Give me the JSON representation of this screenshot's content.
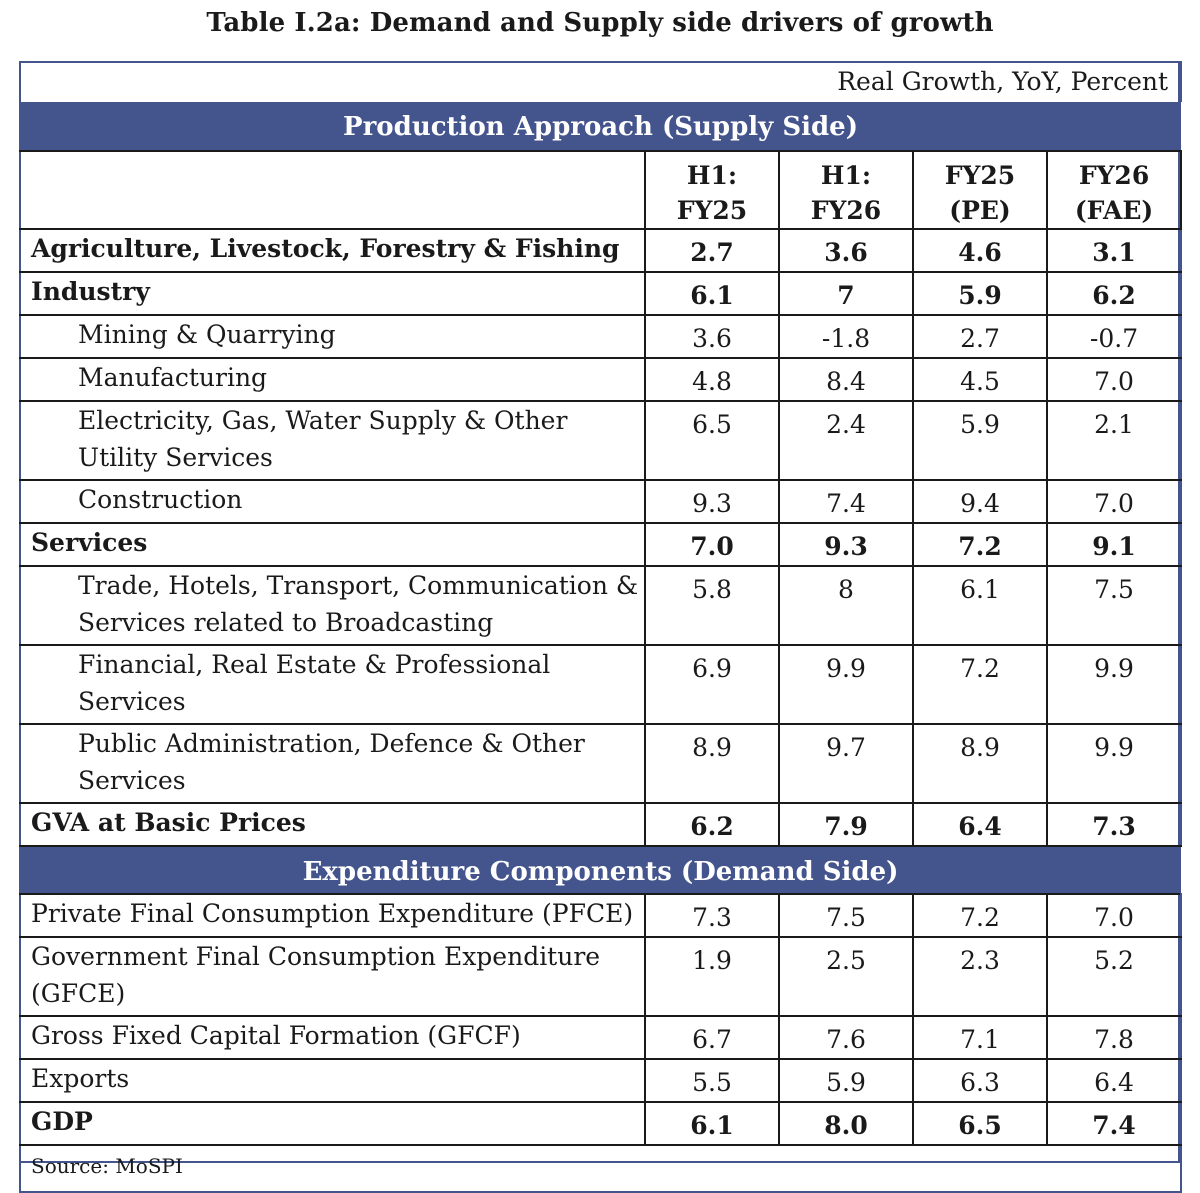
{
  "title": "Table I.2a: Demand and Supply side drivers of growth",
  "units_note": "Real Growth, YoY, Percent",
  "colors": {
    "band_background": "#44548c",
    "band_text": "#ffffff",
    "frame_border": "#44548c"
  },
  "columns": [
    {
      "line1": "H1:",
      "line2": "FY25"
    },
    {
      "line1": "H1:",
      "line2": "FY26"
    },
    {
      "line1": "FY25",
      "line2": "(PE)"
    },
    {
      "line1": "FY26",
      "line2": "(FAE)"
    }
  ],
  "supply_section": {
    "heading": "Production Approach (Supply Side)",
    "rows": [
      {
        "label": "Agriculture, Livestock, Forestry & Fishing",
        "values": [
          "2.7",
          "3.6",
          "4.6",
          "3.1"
        ]
      },
      {
        "label": "Industry",
        "values": [
          "6.1",
          "7",
          "5.9",
          "6.2"
        ]
      },
      {
        "label": "Mining & Quarrying",
        "values": [
          "3.6",
          "-1.8",
          "2.7",
          "-0.7"
        ]
      },
      {
        "label": "Manufacturing",
        "values": [
          "4.8",
          "8.4",
          "4.5",
          "7.0"
        ]
      },
      {
        "label_line1": "Electricity, Gas, Water Supply & Other",
        "label_line2": "Utility Services",
        "values": [
          "6.5",
          "2.4",
          "5.9",
          "2.1"
        ]
      },
      {
        "label": "Construction",
        "values": [
          "9.3",
          "7.4",
          "9.4",
          "7.0"
        ]
      },
      {
        "label": "Services",
        "values": [
          "7.0",
          "9.3",
          "7.2",
          "9.1"
        ]
      },
      {
        "label_line1": "Trade, Hotels, Transport, Communication &",
        "label_line2": "Services related to Broadcasting",
        "values": [
          "5.8",
          "8",
          "6.1",
          "7.5"
        ]
      },
      {
        "label_line1": "Financial, Real Estate & Professional",
        "label_line2": "Services",
        "values": [
          "6.9",
          "9.9",
          "7.2",
          "9.9"
        ]
      },
      {
        "label_line1": "Public Administration, Defence & Other",
        "label_line2": "Services",
        "values": [
          "8.9",
          "9.7",
          "8.9",
          "9.9"
        ]
      },
      {
        "label": "GVA at Basic Prices",
        "values": [
          "6.2",
          "7.9",
          "6.4",
          "7.3"
        ]
      }
    ]
  },
  "demand_section": {
    "heading": "Expenditure Components (Demand Side)",
    "rows": [
      {
        "label": "Private Final Consumption Expenditure (PFCE)",
        "values": [
          "7.3",
          "7.5",
          "7.2",
          "7.0"
        ]
      },
      {
        "label_line1": "Government Final Consumption Expenditure",
        "label_line2": "(GFCE)",
        "values": [
          "1.9",
          "2.5",
          "2.3",
          "5.2"
        ]
      },
      {
        "label": "Gross Fixed Capital Formation (GFCF)",
        "values": [
          "6.7",
          "7.6",
          "7.1",
          "7.8"
        ]
      },
      {
        "label": "Exports",
        "values": [
          "5.5",
          "5.9",
          "6.3",
          "6.4"
        ]
      },
      {
        "label": "GDP",
        "values": [
          "6.1",
          "8.0",
          "6.5",
          "7.4"
        ]
      }
    ]
  },
  "source": "Source: MoSPI"
}
